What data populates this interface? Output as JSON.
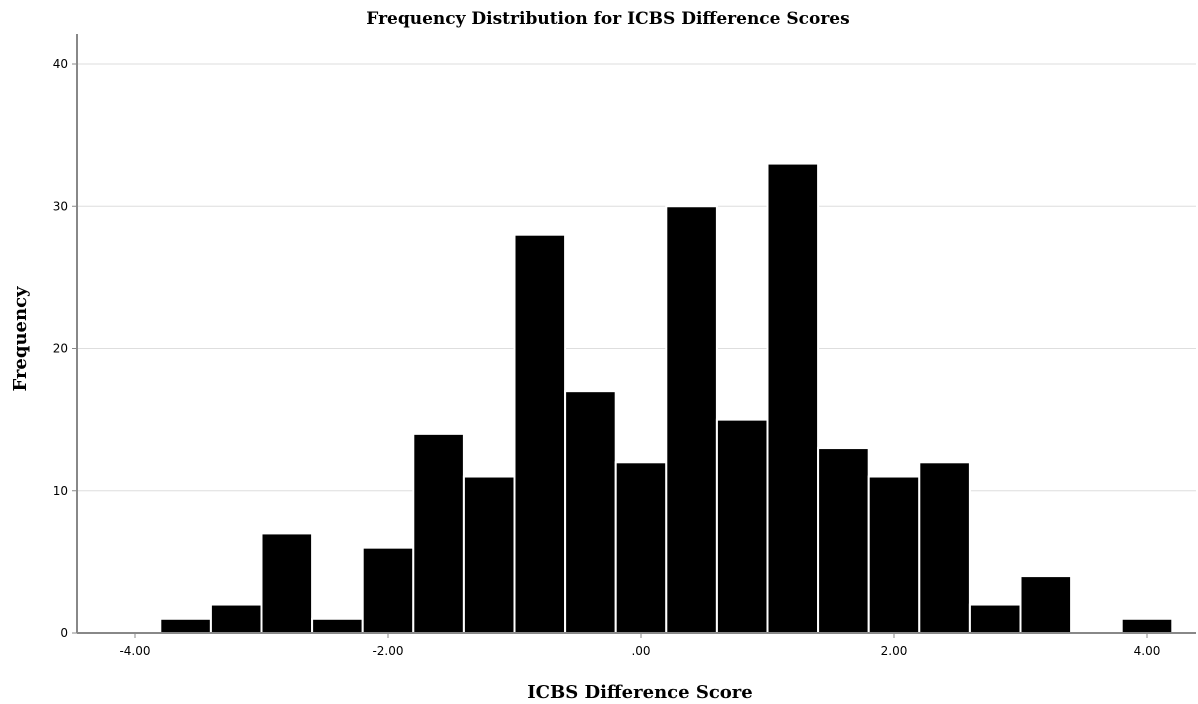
{
  "chart_data": {
    "type": "bar",
    "title": "Frequency Distribution for ICBS Difference Scores",
    "xlabel": "ICBS Difference Score",
    "ylabel": "Frequency",
    "bin_width": 0.4,
    "bin_start": -4.2,
    "values": [
      0,
      1,
      2,
      7,
      1,
      6,
      14,
      11,
      28,
      17,
      12,
      30,
      15,
      33,
      13,
      11,
      12,
      2,
      4,
      0,
      1,
      0
    ],
    "xlim": [
      -4.2,
      4.6
    ],
    "ylim": [
      0,
      40
    ],
    "x_ticks": [
      {
        "value": -4,
        "label": "-4.00"
      },
      {
        "value": -2,
        "label": "-2.00"
      },
      {
        "value": 0,
        "label": ".00"
      },
      {
        "value": 2,
        "label": "2.00"
      },
      {
        "value": 4,
        "label": "4.00"
      }
    ],
    "y_ticks": [
      {
        "value": 0,
        "label": "0"
      },
      {
        "value": 10,
        "label": "10"
      },
      {
        "value": 20,
        "label": "20"
      },
      {
        "value": 30,
        "label": "30"
      },
      {
        "value": 40,
        "label": "40"
      }
    ],
    "grid": "horizontal",
    "bar_color": "#000000",
    "bar_edge_color": "#ffffff",
    "grid_color": "#dedede"
  }
}
